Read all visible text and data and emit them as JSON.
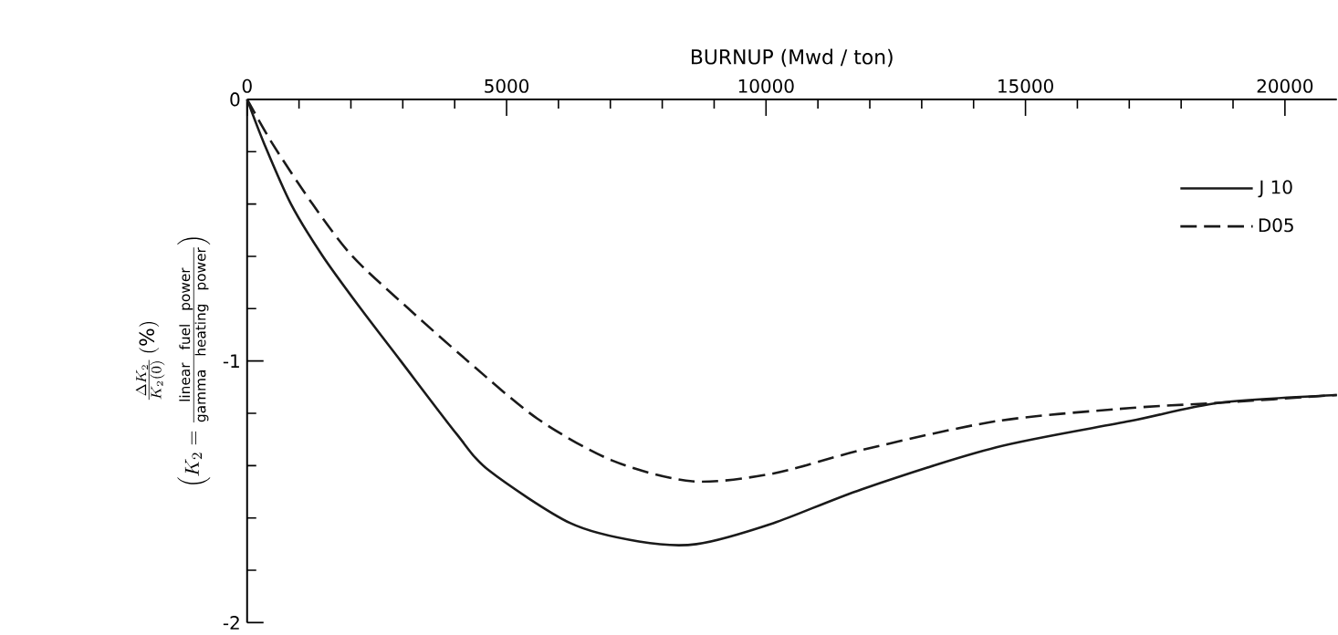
{
  "chart_data": {
    "type": "line",
    "xlabel": "BURNUP  (Mwd / ton)",
    "ylabel": "\\frac{\\Delta K_2}{K_2(0)}\\,(\\%)",
    "annotations": [
      "\\left(K_2 = \\frac{\\mathrm{linear\\ \\ fuel\\ \\ power}}{\\mathrm{gamma\\ \\ heating\\ \\ power}}\\right)"
    ],
    "xlim": [
      0,
      21000
    ],
    "ylim": [
      -2,
      0
    ],
    "xticks": [
      0,
      {
        "value": 1000,
        "label": null
      },
      {
        "value": 2000,
        "label": null
      },
      {
        "value": 3000,
        "label": null
      },
      {
        "value": 4000,
        "label": null
      },
      5000,
      {
        "value": 6000,
        "label": null
      },
      {
        "value": 7000,
        "label": null
      },
      {
        "value": 8000,
        "label": null
      },
      {
        "value": 9000,
        "label": null
      },
      10000,
      {
        "value": 11000,
        "label": null
      },
      {
        "value": 12000,
        "label": null
      },
      {
        "value": 13000,
        "label": null
      },
      {
        "value": 14000,
        "label": null
      },
      15000,
      {
        "value": 16000,
        "label": null
      },
      {
        "value": 17000,
        "label": null
      },
      {
        "value": 18000,
        "label": null
      },
      {
        "value": 19000,
        "label": null
      },
      20000
    ],
    "yticks": [
      0,
      {
        "value": -0.2,
        "label": null
      },
      {
        "value": -0.4,
        "label": null
      },
      {
        "value": -0.6,
        "label": null
      },
      {
        "value": -0.8,
        "label": null
      },
      -1,
      {
        "value": -1.2,
        "label": null
      },
      {
        "value": -1.4,
        "label": null
      },
      {
        "value": -1.6,
        "label": null
      },
      {
        "value": -1.8,
        "label": null
      },
      -2
    ],
    "legend": "top right",
    "series": [
      {
        "name": "J 10",
        "color": "#1a1a1a",
        "line_style": "solid",
        "x": [
          0,
          330,
          845,
          1460,
          2190,
          2960,
          4040,
          4670,
          6230,
          7550,
          8660,
          10140,
          11850,
          14440,
          17010,
          18730,
          21000
        ],
        "values": [
          0,
          -0.17,
          -0.4,
          -0.6,
          -0.8,
          -1.0,
          -1.28,
          -1.42,
          -1.62,
          -1.69,
          -1.7,
          -1.62,
          -1.49,
          -1.33,
          -1.23,
          -1.16,
          -1.13
        ]
      },
      {
        "name": "D05",
        "color": "#1a1a1a",
        "line_style": "dashed",
        "x": [
          0,
          490,
          1260,
          2030,
          3110,
          4250,
          5590,
          7030,
          8580,
          10140,
          11850,
          14440,
          17010,
          18730,
          21000
        ],
        "values": [
          0,
          -0.17,
          -0.4,
          -0.6,
          -0.8,
          -1.0,
          -1.22,
          -1.38,
          -1.46,
          -1.43,
          -1.34,
          -1.23,
          -1.18,
          -1.16,
          -1.13
        ]
      }
    ]
  }
}
